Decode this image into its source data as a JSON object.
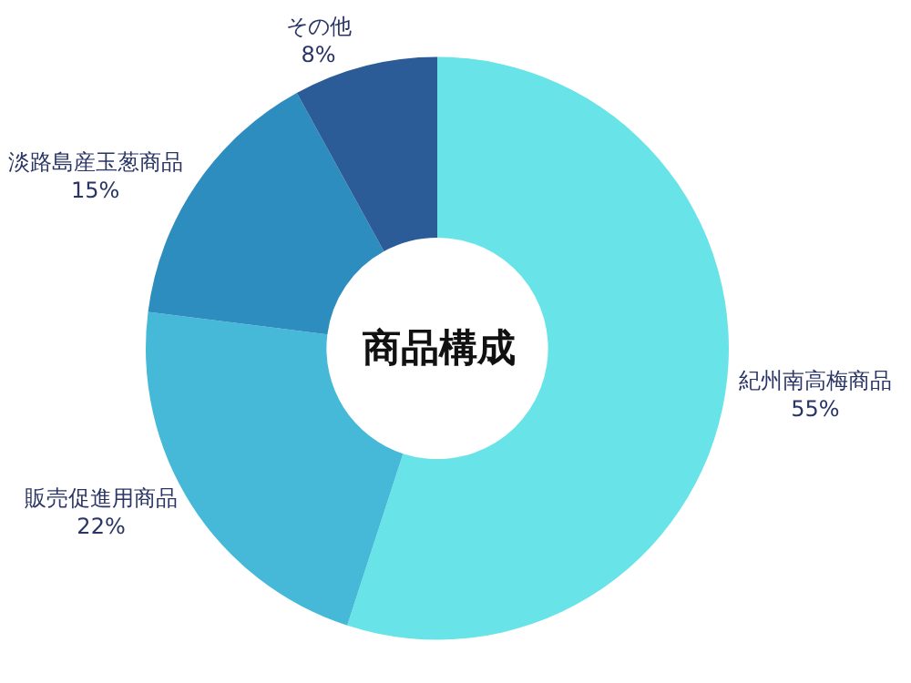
{
  "chart_data": {
    "type": "donut",
    "title": "商品構成",
    "categories": [
      "紀州南高梅商品",
      "販売促進用商品",
      "淡路島産玉葱商品",
      "その他"
    ],
    "values": [
      55,
      22,
      15,
      8
    ],
    "value_labels": [
      "55%",
      "22%",
      "15%",
      "8%"
    ],
    "colors": [
      "#68e3e8",
      "#45b9d7",
      "#2e8dbf",
      "#2b5c98"
    ],
    "legend": false
  }
}
